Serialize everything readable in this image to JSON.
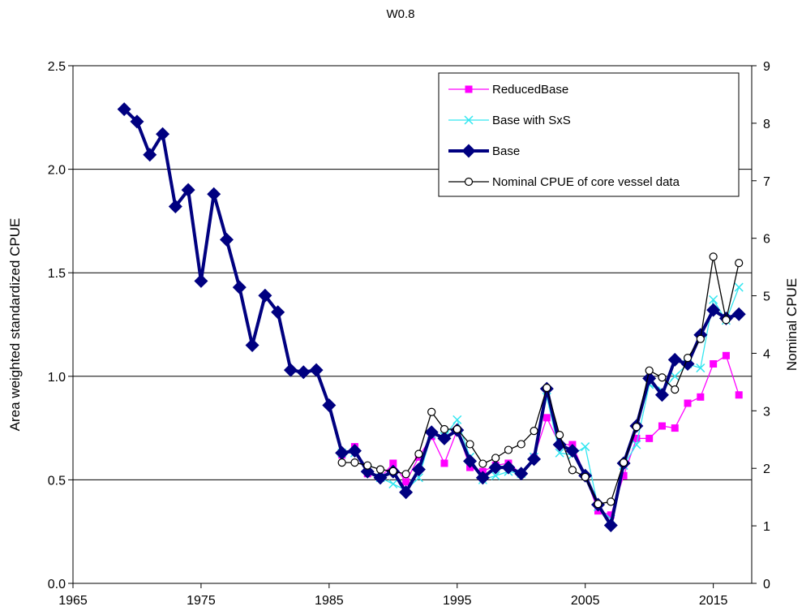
{
  "chart_data": {
    "type": "line",
    "title": "W0.8",
    "xlabel": "",
    "ylabel": "Area weighted standardized CPUE",
    "y2label": "Nominal CPUE",
    "xlim": [
      1965,
      2018
    ],
    "ylim": [
      0,
      2.5
    ],
    "y2lim": [
      0,
      9
    ],
    "xticks": [
      "1965",
      "1975",
      "1985",
      "1995",
      "2005",
      "2015"
    ],
    "yticks": [
      "0.0",
      "0.5",
      "1.0",
      "1.5",
      "2.0",
      "2.5"
    ],
    "y2ticks": [
      "0",
      "1",
      "2",
      "3",
      "4",
      "5",
      "6",
      "7",
      "8",
      "9"
    ],
    "grid": "horizontal",
    "legend_position": "top-right",
    "series": [
      {
        "name": "ReducedBase",
        "axis": "left",
        "color": "#ff00ff",
        "marker": "square",
        "x": [
          1986,
          1987,
          1988,
          1989,
          1990,
          1991,
          1992,
          1993,
          1994,
          1995,
          1996,
          1997,
          1998,
          1999,
          2000,
          2001,
          2002,
          2003,
          2004,
          2005,
          2006,
          2007,
          2008,
          2009,
          2010,
          2011,
          2012,
          2013,
          2014,
          2015,
          2016,
          2017
        ],
        "y": [
          0.62,
          0.66,
          0.53,
          0.51,
          0.58,
          0.49,
          0.61,
          0.71,
          0.58,
          0.74,
          0.56,
          0.54,
          0.57,
          0.58,
          0.53,
          0.61,
          0.8,
          0.67,
          0.67,
          0.52,
          0.35,
          0.33,
          0.52,
          0.7,
          0.7,
          0.76,
          0.75,
          0.87,
          0.9,
          1.06,
          1.1,
          0.91
        ]
      },
      {
        "name": "Base with SxS",
        "axis": "left",
        "color": "#33e6f0",
        "marker": "x",
        "x": [
          1986,
          1987,
          1988,
          1989,
          1990,
          1991,
          1992,
          1993,
          1994,
          1995,
          1996,
          1997,
          1998,
          1999,
          2000,
          2001,
          2002,
          2003,
          2004,
          2005,
          2006,
          2007,
          2008,
          2009,
          2010,
          2011,
          2012,
          2013,
          2014,
          2015,
          2016,
          2017
        ],
        "y": [
          0.63,
          0.63,
          0.55,
          0.51,
          0.48,
          0.45,
          0.51,
          0.72,
          0.71,
          0.79,
          0.61,
          0.5,
          0.52,
          0.54,
          0.53,
          0.61,
          0.9,
          0.63,
          0.62,
          0.66,
          0.37,
          0.31,
          0.57,
          0.67,
          0.96,
          0.93,
          1.0,
          1.06,
          1.04,
          1.37,
          1.27,
          1.43
        ]
      },
      {
        "name": "Base",
        "axis": "left",
        "color": "#000080",
        "marker": "diamond",
        "x": [
          1969,
          1970,
          1971,
          1972,
          1973,
          1974,
          1975,
          1976,
          1977,
          1978,
          1979,
          1980,
          1981,
          1982,
          1983,
          1984,
          1985,
          1986,
          1987,
          1988,
          1989,
          1990,
          1991,
          1992,
          1993,
          1994,
          1995,
          1996,
          1997,
          1998,
          1999,
          2000,
          2001,
          2002,
          2003,
          2004,
          2005,
          2006,
          2007,
          2008,
          2009,
          2010,
          2011,
          2012,
          2013,
          2014,
          2015,
          2016,
          2017
        ],
        "y": [
          2.29,
          2.23,
          2.07,
          2.17,
          1.82,
          1.9,
          1.46,
          1.88,
          1.66,
          1.43,
          1.15,
          1.39,
          1.31,
          1.03,
          1.02,
          1.03,
          0.86,
          0.63,
          0.64,
          0.54,
          0.51,
          0.54,
          0.44,
          0.55,
          0.73,
          0.7,
          0.74,
          0.59,
          0.51,
          0.56,
          0.56,
          0.53,
          0.6,
          0.94,
          0.67,
          0.64,
          0.52,
          0.38,
          0.28,
          0.58,
          0.76,
          0.99,
          0.91,
          1.08,
          1.06,
          1.2,
          1.32,
          1.28,
          1.3
        ]
      },
      {
        "name": "Nominal CPUE of core vessel data",
        "axis": "right",
        "color": "#000000",
        "marker": "circle",
        "x": [
          1986,
          1987,
          1988,
          1989,
          1990,
          1991,
          1992,
          1993,
          1994,
          1995,
          1996,
          1997,
          1998,
          1999,
          2000,
          2001,
          2002,
          2003,
          2004,
          2005,
          2006,
          2007,
          2008,
          2009,
          2010,
          2011,
          2012,
          2013,
          2014,
          2015,
          2016,
          2017
        ],
        "y": [
          2.1,
          2.1,
          2.05,
          1.98,
          1.95,
          1.9,
          2.25,
          2.98,
          2.68,
          2.68,
          2.42,
          2.08,
          2.18,
          2.32,
          2.42,
          2.65,
          3.4,
          2.58,
          1.97,
          1.85,
          1.38,
          1.42,
          2.1,
          2.72,
          3.7,
          3.58,
          3.37,
          3.92,
          4.25,
          5.68,
          4.58,
          5.57
        ]
      }
    ]
  }
}
